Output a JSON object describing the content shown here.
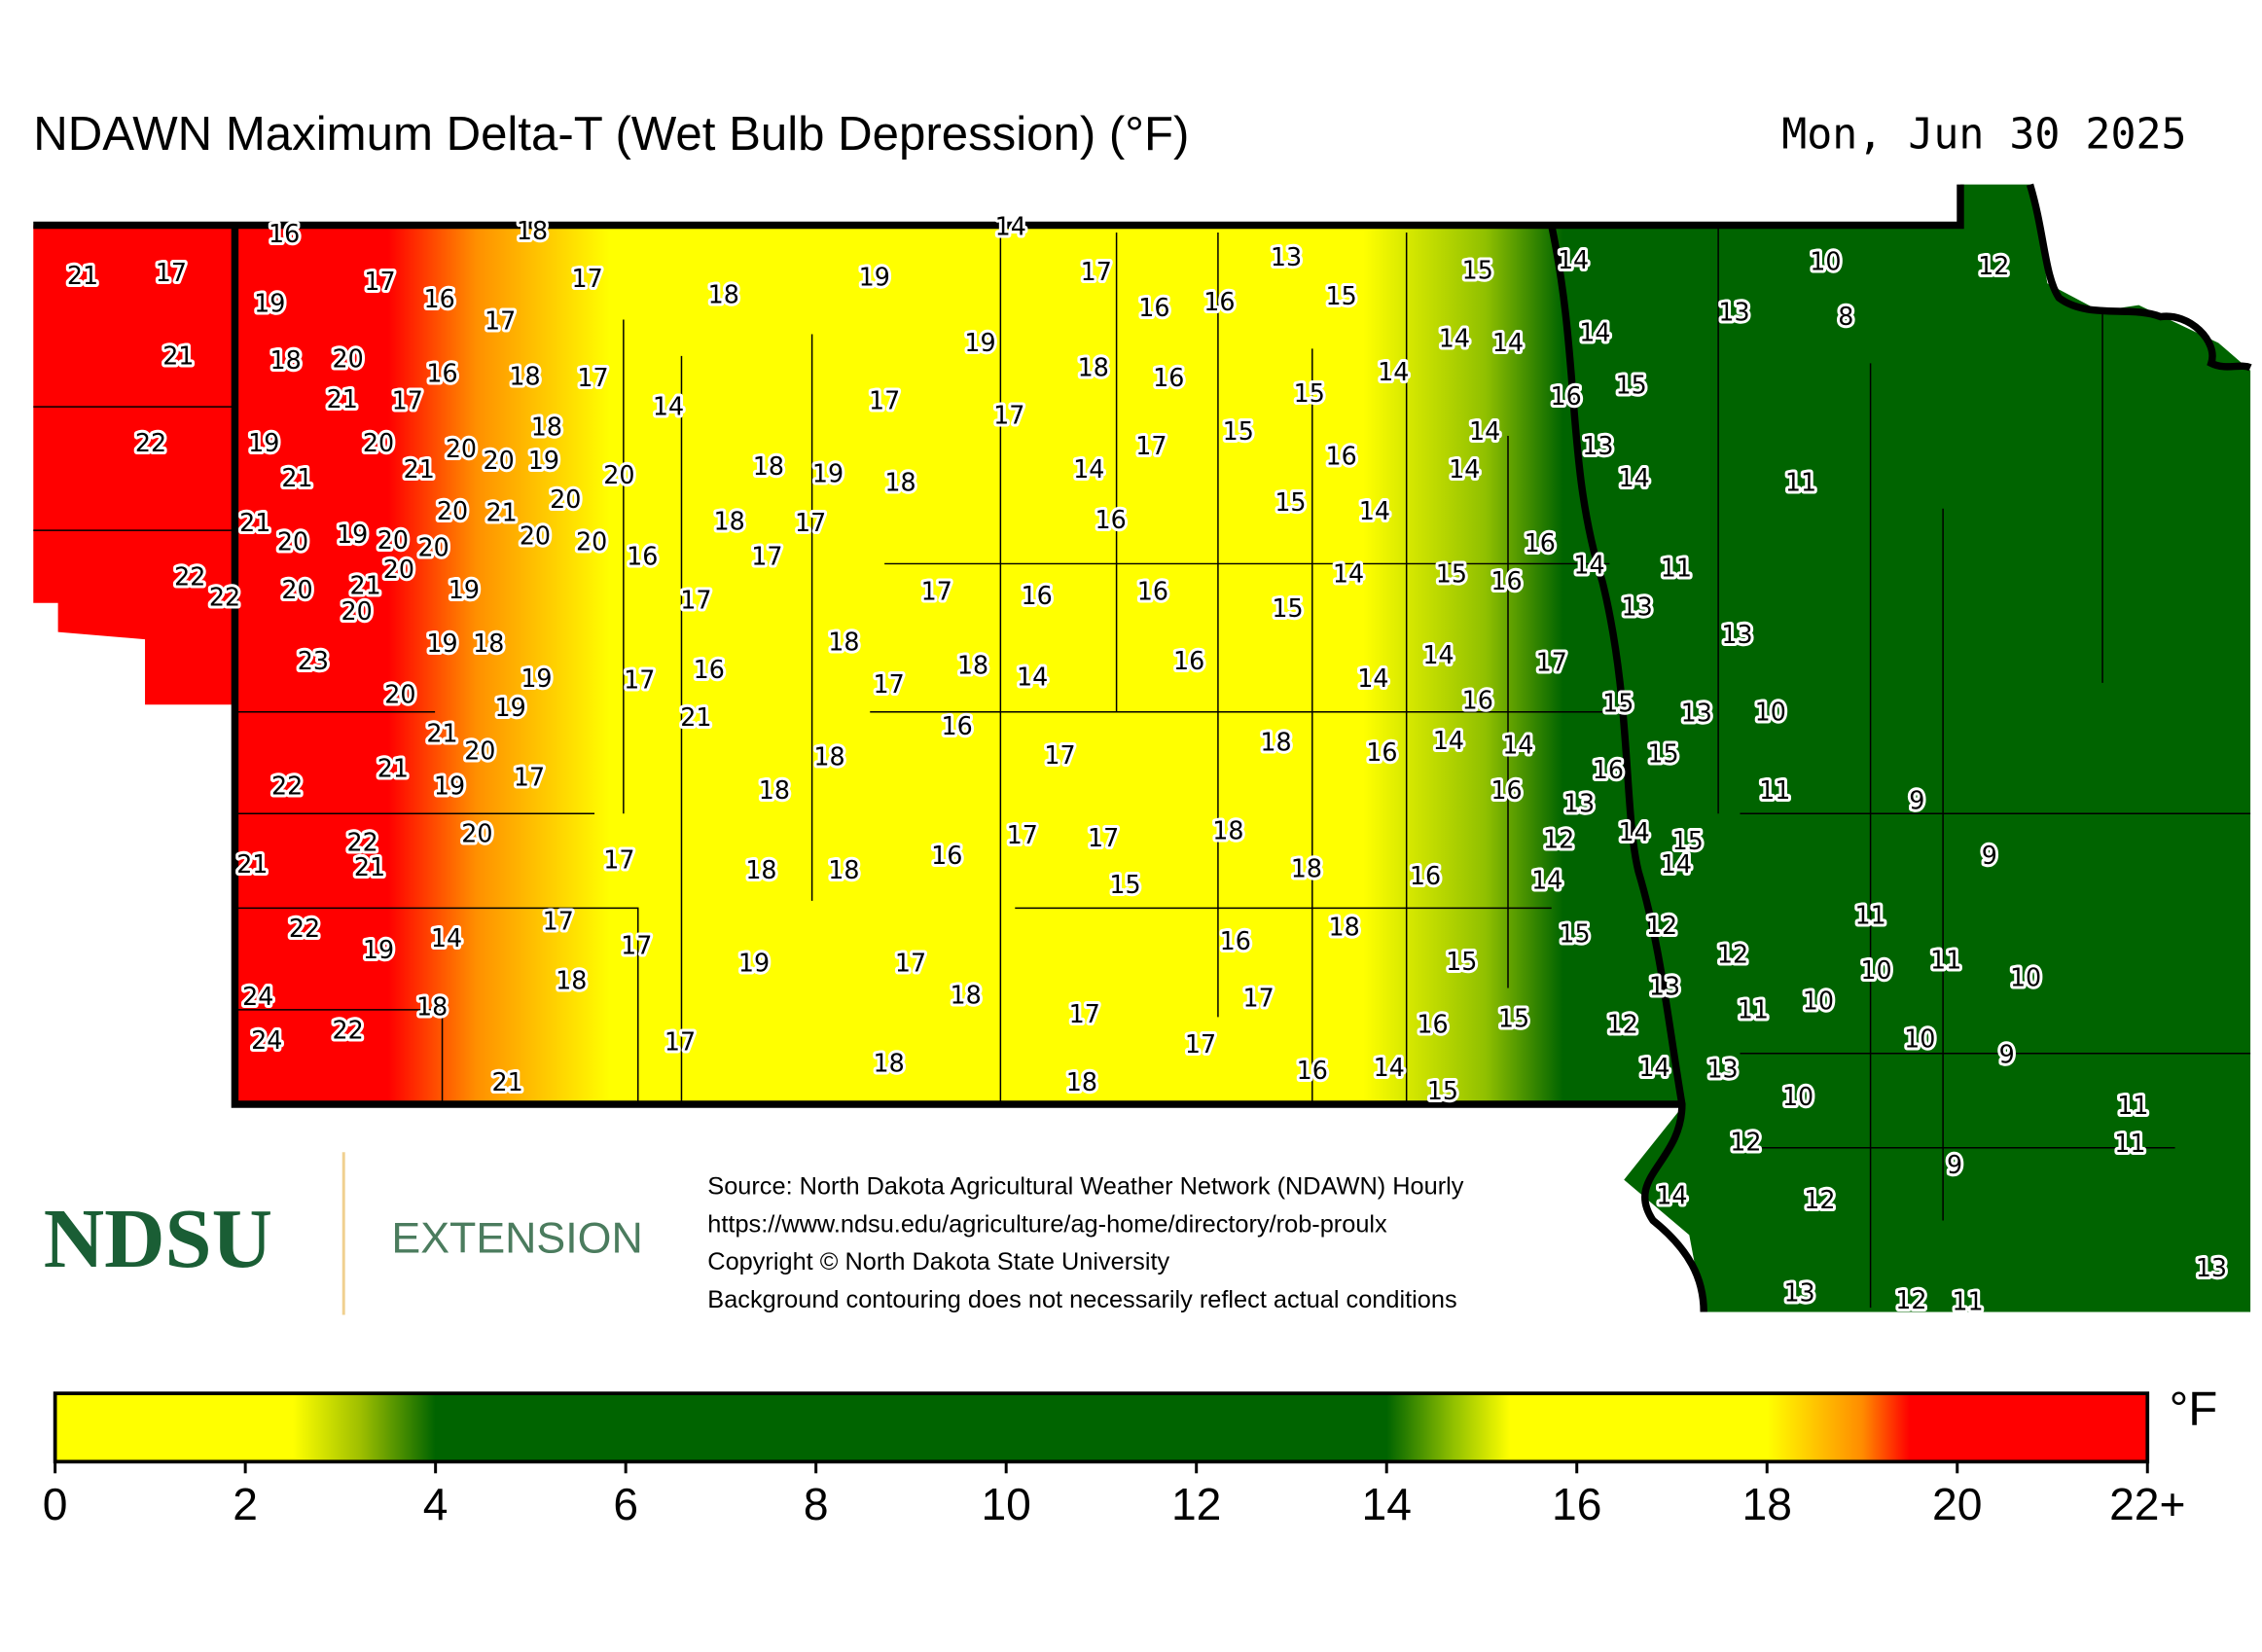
{
  "header": {
    "title": "NDAWN Maximum Delta-T (Wet Bulb Depression) (°F)",
    "date": "Mon, Jun 30 2025"
  },
  "map": {
    "stations": [
      16,
      18,
      14,
      21,
      17,
      19,
      17,
      16,
      17,
      17,
      18,
      19,
      17,
      13,
      15,
      14,
      10,
      12,
      16,
      16,
      15,
      13,
      8,
      21,
      18,
      20,
      19,
      18,
      14,
      14,
      14,
      21,
      17,
      16,
      18,
      17,
      16,
      14,
      15,
      16,
      14,
      17,
      17,
      15,
      18,
      22,
      19,
      20,
      20,
      20,
      19,
      21,
      21,
      20,
      15,
      17,
      14,
      13,
      18,
      19,
      18,
      14,
      16,
      14,
      14,
      11,
      20,
      20,
      21,
      21,
      18,
      17,
      16,
      15,
      14,
      20,
      19,
      20,
      20,
      20,
      20,
      20,
      16,
      17,
      16,
      14,
      11,
      22,
      22,
      20,
      21,
      20,
      19,
      17,
      17,
      16,
      16,
      14,
      15,
      16,
      15,
      13,
      13,
      19,
      18,
      18,
      23,
      19,
      17,
      16,
      18,
      17,
      14,
      16,
      14,
      14,
      17,
      20,
      19,
      21,
      16,
      15,
      13,
      10,
      21,
      20,
      16,
      18,
      17,
      18,
      16,
      14,
      14,
      15,
      16,
      21,
      17,
      22,
      19,
      18,
      16,
      11,
      13,
      9,
      20,
      12,
      14,
      15,
      14,
      17,
      17,
      18,
      22,
      21,
      21,
      17,
      18,
      18,
      16,
      15,
      18,
      16,
      14,
      9,
      17,
      22,
      14,
      19,
      17,
      18,
      15,
      12,
      11,
      16,
      15,
      12,
      19,
      17,
      18,
      10,
      11,
      10,
      18,
      17,
      13,
      24,
      18,
      17,
      15,
      16,
      12,
      11,
      10,
      24,
      22,
      17,
      17,
      10,
      9,
      18,
      16,
      14,
      14,
      13,
      21,
      18,
      15,
      10,
      11,
      12,
      11,
      9,
      14,
      12,
      13,
      13,
      12,
      11
    ]
  },
  "logo": {
    "name": "NDSU",
    "unit": "EXTENSION"
  },
  "source": [
    "Source: North Dakota Agricultural Weather Network (NDAWN) Hourly",
    "https://www.ndsu.edu/agriculture/ag-home/directory/rob-proulx",
    "Copyright © North Dakota State University",
    "Background contouring does not necessarily reflect actual conditions"
  ],
  "colorbar": {
    "lim": [
      0,
      22
    ],
    "ticks": [
      0,
      2,
      4,
      6,
      8,
      10,
      12,
      14,
      16,
      18,
      20,
      {
        "value": 22,
        "label": "22+"
      }
    ],
    "unit": "°F",
    "stops": [
      {
        "value": 0,
        "color": "#ffff00"
      },
      {
        "value": 2.5,
        "color": "#ffff00"
      },
      {
        "value": 3.2,
        "color": "#a0c000"
      },
      {
        "value": 4,
        "color": "#006400"
      },
      {
        "value": 14,
        "color": "#006400"
      },
      {
        "value": 14.7,
        "color": "#90c000"
      },
      {
        "value": 15.3,
        "color": "#ffff00"
      },
      {
        "value": 18,
        "color": "#ffff00"
      },
      {
        "value": 19,
        "color": "#ff8c00"
      },
      {
        "value": 19.5,
        "color": "#ff0000"
      },
      {
        "value": 22,
        "color": "#ff0000"
      }
    ]
  }
}
